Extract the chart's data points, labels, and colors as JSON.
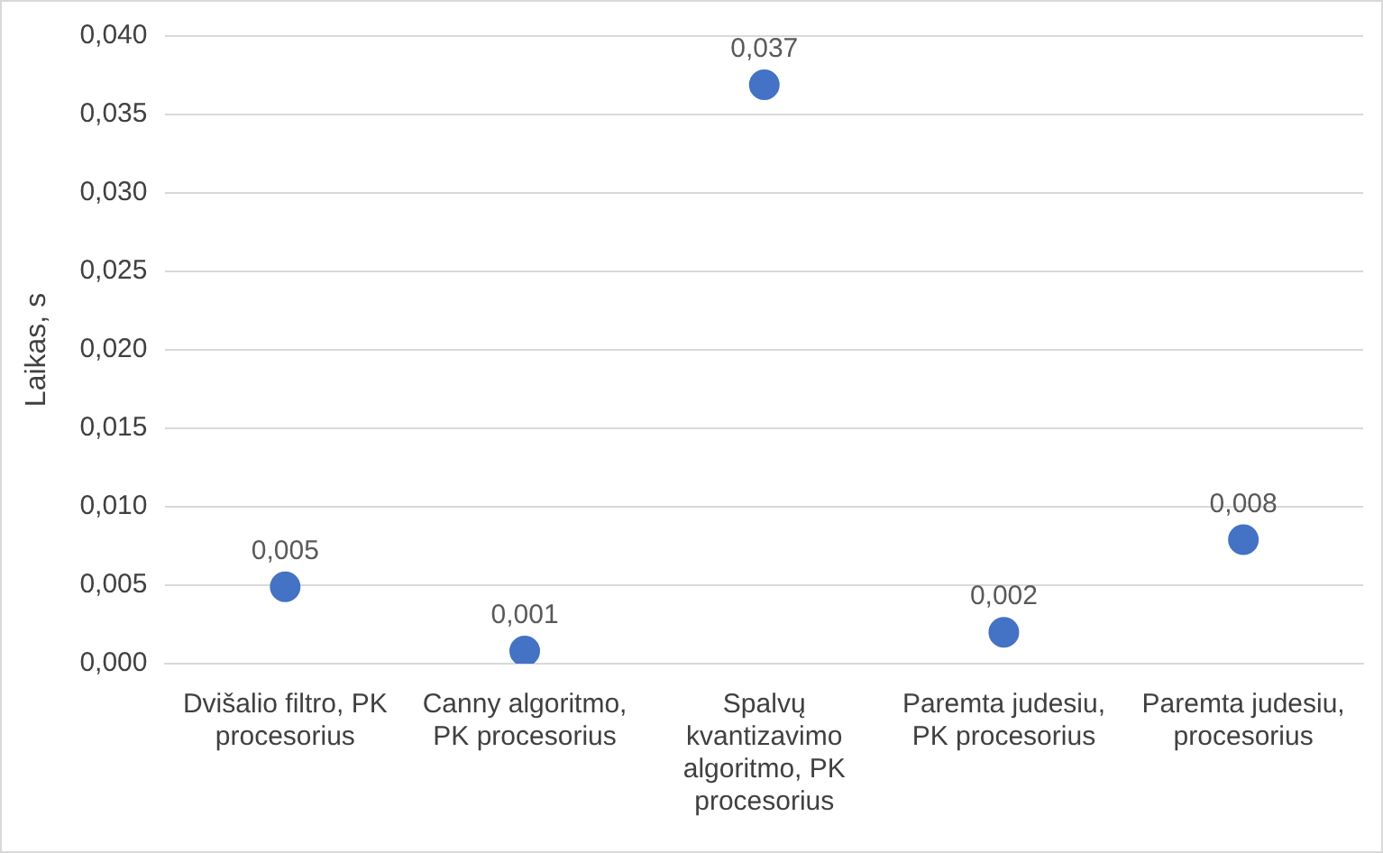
{
  "chart_data": {
    "type": "scatter",
    "ylabel": "Laikas, s",
    "categories": [
      "Dvišalio filtro, PK procesorius",
      "Canny algoritmo, PK procesorius",
      "Spalvų kvantizavimo algoritmo, PK procesorius",
      "Paremta judesiu, PK procesorius",
      "Paremta judesiu, procesorius"
    ],
    "values": [
      0.0049,
      0.0008,
      0.0369,
      0.002,
      0.0079
    ],
    "value_labels": [
      "0,005",
      "0,001",
      "0,037",
      "0,002",
      "0,008"
    ],
    "color": "#4472c4",
    "marker": "circle",
    "grid": "y",
    "legend": false,
    "ylim": [
      0,
      0.04
    ],
    "yticks": [
      {
        "value": 0,
        "label": "0,000"
      },
      {
        "value": 0.005,
        "label": "0,005"
      },
      {
        "value": 0.01,
        "label": "0,010"
      },
      {
        "value": 0.015,
        "label": "0,015"
      },
      {
        "value": 0.02,
        "label": "0,020"
      },
      {
        "value": 0.025,
        "label": "0,025"
      },
      {
        "value": 0.03,
        "label": "0,030"
      },
      {
        "value": 0.035,
        "label": "0,035"
      },
      {
        "value": 0.04,
        "label": "0,040"
      }
    ]
  }
}
